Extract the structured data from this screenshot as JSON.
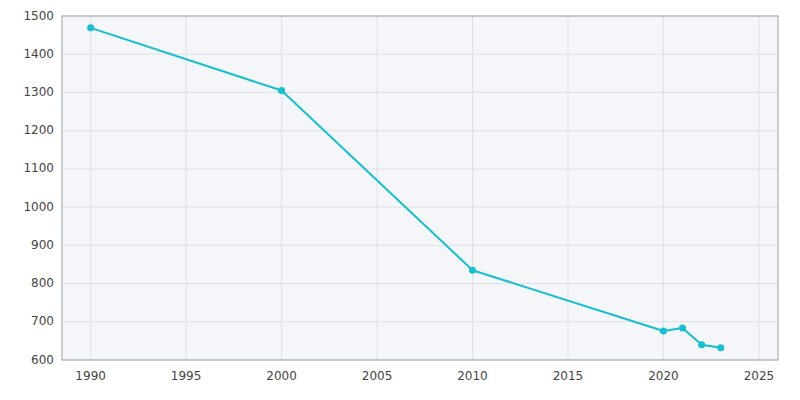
{
  "chart_data": {
    "type": "line",
    "x": [
      1990,
      2000,
      2010,
      2020,
      2021,
      2022,
      2023
    ],
    "values": [
      1469,
      1305,
      835,
      676,
      684,
      640,
      632
    ],
    "color": "#17becf",
    "marker": "circle",
    "line_style": "solid",
    "xlim": [
      1988.5,
      2026
    ],
    "ylim": [
      600,
      1500
    ],
    "xticks": [
      1990,
      1995,
      2000,
      2005,
      2010,
      2015,
      2020,
      2025
    ],
    "yticks": [
      600,
      700,
      800,
      900,
      1000,
      1100,
      1200,
      1300,
      1400,
      1500
    ],
    "grid": true
  }
}
